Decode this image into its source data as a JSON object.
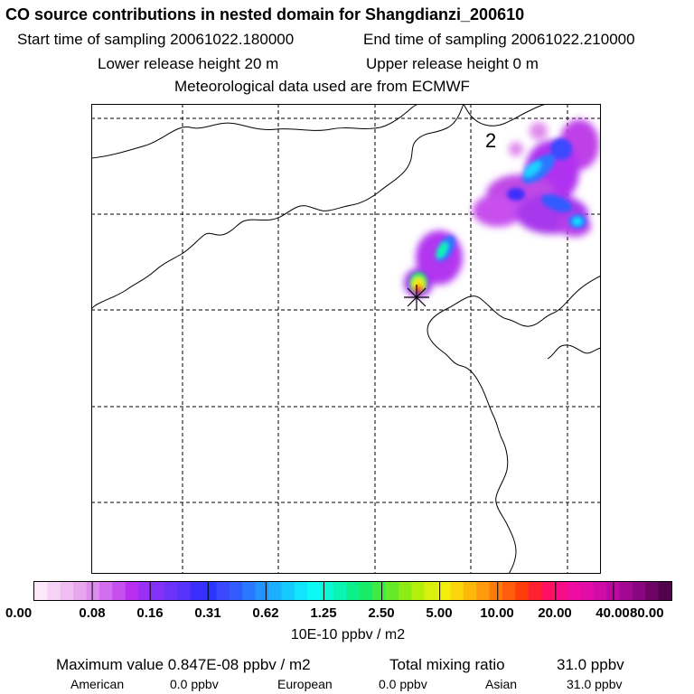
{
  "title": "CO  source contributions in nested domain for Shangdianzi_200610",
  "sampling": {
    "start_label": "Start time of sampling 20061022.180000",
    "end_label": "End time of sampling 20061022.210000"
  },
  "release": {
    "lower_label": "Lower release height   20 m",
    "upper_label": "Upper release height    0 m"
  },
  "met_label": "Meteorological data used are from ECMWF",
  "map": {
    "contour_label": "2"
  },
  "colorbar": {
    "colors": [
      "#fbe9fb",
      "#f5d3f6",
      "#efbdf2",
      "#e8a6ee",
      "#dd8ced",
      "#d36fee",
      "#c64ff0",
      "#b82ff2",
      "#9a2ff5",
      "#8431f7",
      "#6d32f9",
      "#5733fb",
      "#3c2ffc",
      "#2a35fe",
      "#3a48ff",
      "#335cff",
      "#2a78ff",
      "#2394ff",
      "#1cb0ff",
      "#16caff",
      "#10e4ff",
      "#0cfaf4",
      "#0cf7d3",
      "#0cf4b2",
      "#0cef8b",
      "#18ec66",
      "#3eea44",
      "#64ea27",
      "#8cec14",
      "#b4ef0c",
      "#d7f00c",
      "#f2ee0c",
      "#fbd60c",
      "#fdb80c",
      "#fe9a0c",
      "#ff7c0c",
      "#ff5c0c",
      "#ff3c0c",
      "#ff2030",
      "#ff1060",
      "#f80c86",
      "#ef0ca0",
      "#e20ca9",
      "#d00ca6",
      "#bc0aa0",
      "#a30893",
      "#8a0681",
      "#6e0466",
      "#52024b"
    ],
    "tick_labels": [
      "0.00",
      "0.08",
      "0.16",
      "0.31",
      "0.62",
      "1.25",
      "2.50",
      "5.00",
      "10.00",
      "20.00",
      "40.00",
      "80.00"
    ],
    "units": "10E-10 ppbv / m2"
  },
  "stats": {
    "max_label": "Maximum value  0.847E-08 ppbv / m2",
    "total_label": "Total mixing ratio",
    "total_value": "31.0 ppbv",
    "american_label": "American",
    "american_value": "0.0 ppbv",
    "european_label": "European",
    "european_value": "0.0 ppbv",
    "asian_label": "Asian",
    "asian_value": "31.0 ppbv"
  }
}
